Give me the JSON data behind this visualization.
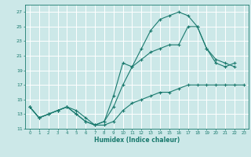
{
  "title": "",
  "xlabel": "Humidex (Indice chaleur)",
  "ylabel": "",
  "bg_color": "#cce8e8",
  "grid_color": "#ffffff",
  "line_color": "#1a7a6e",
  "xlim": [
    -0.5,
    23.5
  ],
  "ylim": [
    11,
    28
  ],
  "yticks": [
    11,
    13,
    15,
    17,
    19,
    21,
    23,
    25,
    27
  ],
  "xticks": [
    0,
    1,
    2,
    3,
    4,
    5,
    6,
    7,
    8,
    9,
    10,
    11,
    12,
    13,
    14,
    15,
    16,
    17,
    18,
    19,
    20,
    21,
    22,
    23
  ],
  "series": [
    {
      "x": [
        0,
        1,
        2,
        3,
        4,
        5,
        6,
        7,
        8,
        9,
        10,
        11,
        12,
        13,
        14,
        15,
        16,
        17,
        18,
        19,
        20,
        21,
        22,
        23
      ],
      "y": [
        14.0,
        12.5,
        13.0,
        13.5,
        14.0,
        13.0,
        12.0,
        11.5,
        11.5,
        12.0,
        13.5,
        14.5,
        15.0,
        15.5,
        16.0,
        16.0,
        16.5,
        17.0,
        17.0,
        17.0,
        17.0,
        17.0,
        17.0,
        17.0
      ]
    },
    {
      "x": [
        0,
        1,
        2,
        3,
        4,
        5,
        6,
        7,
        8,
        9,
        10,
        11,
        12,
        13,
        14,
        15,
        16,
        17,
        18,
        19,
        20,
        21,
        22,
        23
      ],
      "y": [
        14.0,
        12.5,
        13.0,
        13.5,
        14.0,
        13.0,
        12.0,
        11.5,
        12.0,
        15.5,
        20.0,
        19.5,
        22.0,
        24.5,
        26.0,
        26.5,
        27.0,
        26.5,
        25.0,
        22.0,
        20.0,
        19.5,
        20.0,
        null
      ]
    },
    {
      "x": [
        0,
        1,
        2,
        3,
        4,
        5,
        6,
        7,
        8,
        9,
        10,
        11,
        12,
        13,
        14,
        15,
        16,
        17,
        18,
        19,
        20,
        21,
        22,
        23
      ],
      "y": [
        14.0,
        12.5,
        13.0,
        13.5,
        14.0,
        13.5,
        12.5,
        11.5,
        12.0,
        14.0,
        17.0,
        19.5,
        20.5,
        21.5,
        22.0,
        22.5,
        22.5,
        25.0,
        25.0,
        22.0,
        20.5,
        20.0,
        19.5,
        null
      ]
    }
  ]
}
